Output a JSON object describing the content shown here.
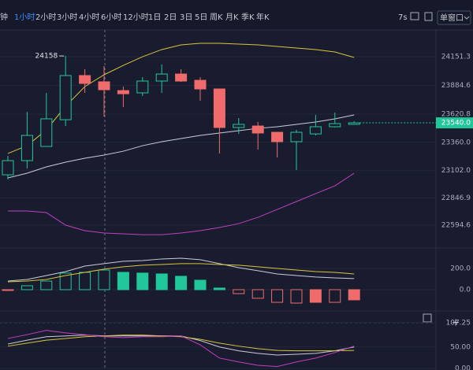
{
  "toolbar": {
    "intervals": [
      "钟",
      "1小时",
      "2小时",
      "3小时",
      "4小时",
      "6小时",
      "12小时",
      "1日",
      "2日",
      "3日",
      "5日",
      "周K",
      "月K",
      "季K",
      "年K"
    ],
    "active": 1,
    "refresh": "7s",
    "window": "单窗口"
  },
  "chart_data": [
    {
      "type": "candlestick",
      "open": [
        23060,
        23191,
        23322,
        23569,
        23977,
        23919,
        23838,
        23817,
        23926,
        23991,
        23933,
        23853,
        23497,
        23511,
        23453,
        23366,
        23438,
        23504,
        23526
      ],
      "high": [
        23235,
        23642,
        23817,
        24158,
        24035,
        24064,
        23875,
        23962,
        24079,
        24035,
        23962,
        23853,
        23584,
        23548,
        23453,
        23475,
        23613,
        23635,
        23555
      ],
      "low": [
        23017,
        23118,
        23322,
        23511,
        23817,
        23598,
        23686,
        23788,
        23817,
        23919,
        23744,
        23257,
        23438,
        23293,
        23220,
        23104,
        23424,
        23497,
        23526
      ],
      "close": [
        23191,
        23424,
        23577,
        23977,
        23904,
        23846,
        23809,
        23926,
        23991,
        23926,
        23853,
        23497,
        23526,
        23446,
        23366,
        23453,
        23504,
        23533,
        23540
      ],
      "last_price_label": "23540.0",
      "up_color": "#21c79a",
      "down_color": "#f06b6b",
      "lines": [
        {
          "color": "#d8c53a",
          "values": [
            23257,
            23329,
            23475,
            23693,
            23875,
            23984,
            24071,
            24151,
            24217,
            24260,
            24275,
            24275,
            24268,
            24260,
            24246,
            24231,
            24217,
            24195,
            24144
          ]
        },
        {
          "color": "#c9cdd8",
          "values": [
            23031,
            23075,
            23133,
            23177,
            23213,
            23242,
            23278,
            23329,
            23366,
            23395,
            23424,
            23446,
            23468,
            23489,
            23504,
            23526,
            23548,
            23577,
            23613
          ]
        },
        {
          "color": "#c23ec2",
          "values": [
            22726,
            22726,
            22711,
            22595,
            22544,
            22522,
            22515,
            22507,
            22507,
            22522,
            22544,
            22573,
            22609,
            22667,
            22740,
            22813,
            22886,
            22958,
            23075
          ]
        }
      ],
      "ylim": [
        22384,
        24384
      ],
      "yticks": [
        24151.3,
        23884.6,
        23620.8,
        {
          "value": 23360,
          "label": "23360.0"
        },
        {
          "value": 23102,
          "label": "23102.0"
        },
        22846.9,
        22594.6
      ]
    },
    {
      "type": "macd",
      "values": [
        -5,
        37,
        81,
        156,
        163,
        185,
        163,
        156,
        148,
        126,
        89,
        15,
        -37,
        -81,
        -119,
        -126,
        -119,
        -119,
        -96
      ],
      "up_color": "#21c79a",
      "down_color": "#f06b6b",
      "lines": [
        {
          "color": "#c9cdd8",
          "values": [
            81,
            96,
            133,
            170,
            222,
            245,
            267,
            274,
            289,
            296,
            282,
            245,
            207,
            178,
            148,
            133,
            119,
            111,
            104
          ]
        },
        {
          "color": "#d8c53a",
          "values": [
            74,
            81,
            96,
            133,
            163,
            193,
            215,
            230,
            237,
            245,
            245,
            237,
            230,
            215,
            200,
            185,
            170,
            163,
            148
          ]
        }
      ],
      "ylim": [
        -178,
        370
      ],
      "yticks": [
        {
          "value": 200,
          "label": "200.0"
        },
        {
          "value": 0,
          "label": "0.0"
        }
      ]
    },
    {
      "type": "line",
      "lines": [
        {
          "color": "#c9cdd8",
          "values": [
            57,
            66,
            74,
            76,
            78,
            76,
            76,
            76,
            76,
            76,
            65,
            50,
            41,
            35,
            31,
            33,
            35,
            41,
            50
          ]
        },
        {
          "color": "#d8c53a",
          "values": [
            52,
            59,
            66,
            70,
            74,
            76,
            78,
            78,
            76,
            74,
            68,
            59,
            52,
            46,
            42,
            41,
            41,
            41,
            42
          ]
        },
        {
          "color": "#c23ec2",
          "values": [
            70,
            79,
            89,
            83,
            79,
            74,
            72,
            74,
            74,
            76,
            55,
            24,
            15,
            7,
            4,
            15,
            24,
            37,
            52
          ]
        }
      ],
      "ylim": [
        -4,
        129
      ],
      "yticks": [
        107.25,
        {
          "value": 50,
          "label": "50.00"
        },
        {
          "value": 0,
          "label": "0.00"
        }
      ]
    }
  ]
}
